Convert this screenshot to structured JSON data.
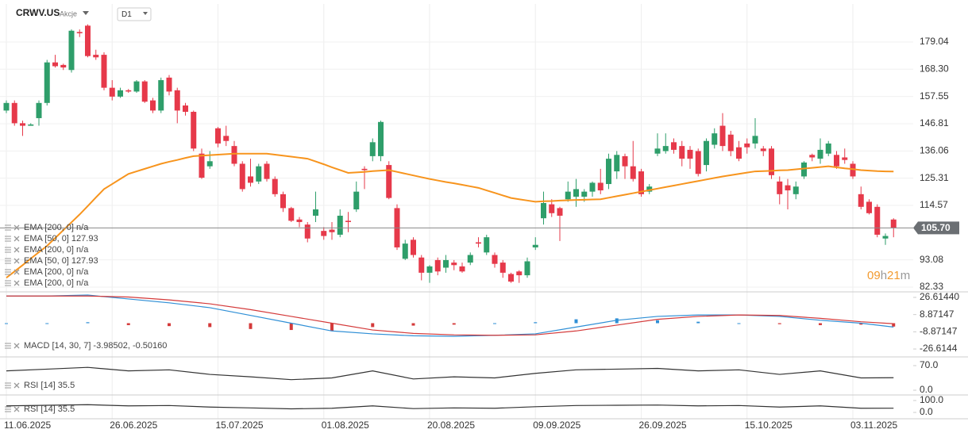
{
  "header": {
    "symbol": "CRWV.US",
    "kind": "Akcje",
    "interval": "D1"
  },
  "chart_data": [
    {
      "type": "candlestick",
      "categories": [
        "11.06.2025",
        null,
        null,
        null,
        null,
        null,
        null,
        null,
        null,
        null,
        null,
        null,
        null,
        "26.06.2025",
        null,
        null,
        null,
        null,
        null,
        null,
        null,
        null,
        null,
        null,
        null,
        null,
        "15.07.2025",
        null,
        null,
        null,
        null,
        null,
        null,
        null,
        null,
        null,
        null,
        null,
        null,
        "01.08.2025",
        null,
        null,
        null,
        null,
        null,
        null,
        null,
        null,
        null,
        null,
        null,
        null,
        "20.08.2025",
        null,
        null,
        null,
        null,
        null,
        null,
        null,
        null,
        null,
        null,
        null,
        null,
        "09.09.2025",
        null,
        null,
        null,
        null,
        null,
        null,
        null,
        null,
        null,
        null,
        null,
        null,
        "26.09.2025",
        null,
        null,
        null,
        null,
        null,
        null,
        null,
        null,
        null,
        null,
        null,
        null,
        "15.10.2025",
        null,
        null,
        null,
        null,
        null,
        null,
        null,
        null,
        null,
        null,
        null,
        null,
        "03.11.2025",
        null,
        null,
        null,
        null,
        null
      ],
      "open": [
        152,
        155,
        147,
        146,
        149,
        155,
        171,
        170,
        168,
        183,
        185.5,
        174,
        174,
        161,
        157.5,
        160,
        159.5,
        163.5,
        156,
        152,
        165,
        160,
        154,
        151.5,
        135,
        130,
        145,
        142,
        138,
        131,
        126,
        124,
        131,
        125,
        119,
        113.5,
        109,
        107,
        110.5,
        104.5,
        105,
        103,
        108.5,
        113,
        129,
        134,
        134,
        130.5,
        113.5,
        93.5,
        101,
        94,
        88,
        93,
        90,
        92,
        90.5,
        92,
        100,
        96,
        95,
        92,
        87.5,
        88.5,
        87,
        98,
        109.5,
        115,
        113.5,
        117,
        118,
        118,
        120,
        123.5,
        123,
        128,
        134,
        130,
        128,
        120,
        135,
        136,
        139.5,
        138,
        136.5,
        136,
        130.5,
        138.5,
        146,
        142.5,
        137.5,
        139,
        139,
        137,
        137,
        124,
        122.5,
        119,
        126,
        134.5,
        133,
        135,
        134.5,
        133.5,
        131,
        119,
        116,
        114,
        101.5,
        109
      ],
      "high": [
        156,
        156,
        148,
        147,
        156,
        172,
        174,
        170.5,
        184,
        184,
        186,
        176,
        175,
        164,
        161,
        160.5,
        164,
        164,
        157,
        165,
        166,
        161,
        155,
        152,
        137,
        136,
        145.5,
        146,
        140,
        132,
        133,
        131,
        132,
        126,
        120,
        114,
        110,
        108,
        120,
        106,
        108,
        113,
        112,
        124,
        130,
        141,
        148,
        132,
        115,
        101,
        102,
        95,
        91,
        94,
        95,
        93,
        92,
        96,
        102,
        103,
        96,
        93,
        88,
        89,
        94,
        102,
        120,
        117,
        114,
        124,
        125,
        121,
        124,
        129,
        135,
        136,
        135,
        140,
        129,
        123,
        143,
        143,
        141,
        140,
        138,
        137,
        141,
        145,
        151,
        144,
        140,
        141,
        149,
        138,
        138,
        126,
        125,
        124,
        132,
        135,
        141,
        140,
        136,
        137,
        132,
        122,
        117,
        115,
        103.5,
        109.5
      ],
      "low": [
        151,
        146,
        142,
        146,
        146,
        154,
        169,
        168,
        167,
        181,
        173,
        172,
        160,
        156,
        157,
        159,
        159,
        155,
        151,
        151,
        158,
        147,
        150,
        136,
        125,
        129,
        137.5,
        138,
        130,
        120,
        122,
        123,
        124,
        118,
        112,
        108,
        106,
        100,
        108,
        101,
        101,
        102,
        104,
        112,
        121,
        132,
        132,
        117,
        97,
        93,
        94,
        85,
        84,
        87,
        88,
        89,
        88,
        91,
        98,
        95,
        90,
        86,
        84,
        84,
        86,
        97,
        107,
        110,
        100.5,
        116,
        114,
        116,
        118,
        119,
        121,
        125,
        125,
        124,
        118,
        119,
        134,
        135,
        135,
        130,
        129,
        126,
        128,
        137,
        136,
        134,
        132,
        135,
        137,
        134,
        125,
        115,
        113,
        117,
        125,
        132,
        131,
        134,
        129,
        131,
        125,
        113,
        111,
        102,
        99,
        102
      ],
      "close": [
        155,
        147,
        146,
        146.5,
        155,
        171,
        169.5,
        169,
        183.5,
        182.5,
        173.5,
        173,
        161,
        157.5,
        160,
        159.5,
        163.5,
        155.5,
        152,
        164,
        159.5,
        152,
        151.5,
        137,
        125.5,
        132,
        139,
        140,
        131,
        121,
        123.5,
        130,
        125,
        119,
        113.5,
        108.5,
        108,
        101.5,
        113,
        102.5,
        104,
        110.5,
        108,
        120,
        128.5,
        139.5,
        147.5,
        117.5,
        98,
        99.5,
        95,
        88,
        90.5,
        88.5,
        93,
        91,
        88.5,
        95,
        99.5,
        102,
        91.5,
        88,
        84.5,
        87,
        92.5,
        99,
        115.5,
        111.5,
        110.5,
        120,
        121,
        120,
        123.5,
        120.5,
        133,
        134.5,
        130,
        125,
        119,
        122,
        137,
        138,
        136.5,
        133,
        133,
        127,
        140,
        143,
        138,
        136,
        133,
        137.5,
        142,
        136,
        126.5,
        119,
        120.5,
        122,
        131.5,
        133.5,
        136.5,
        139,
        130,
        132.5,
        126,
        114,
        111.5,
        103,
        102.5,
        105.7
      ],
      "up_color": "#2e9e6a",
      "down_color": "#e6394a",
      "series": [
        {
          "color": "#f7941d",
          "values": [
            86,
            88.5,
            91,
            93.6,
            96.1,
            98.6,
            101.7,
            104.8,
            107.9,
            111,
            114.3,
            117.7,
            121,
            123,
            125,
            127,
            128,
            129,
            130,
            131,
            131.8,
            132.5,
            133.3,
            134,
            134.2,
            134.4,
            134.6,
            134.8,
            135,
            135,
            135,
            135,
            135,
            134.6,
            134.2,
            133.8,
            133.4,
            133,
            131.9,
            130.8,
            129.6,
            128.5,
            127.4,
            127.6,
            127.8,
            128.1,
            128.3,
            128.5,
            127.8,
            127.1,
            126.4,
            125.7,
            125,
            124.4,
            123.8,
            123.3,
            122.7,
            122.1,
            121.5,
            120.5,
            119.5,
            118.5,
            117.5,
            117,
            116.5,
            116,
            116.2,
            116.3,
            116.5,
            116.6,
            116.7,
            116.8,
            116.9,
            117,
            117.6,
            118.2,
            118.8,
            119.4,
            120,
            120.6,
            121.2,
            121.8,
            122.4,
            123,
            123.6,
            124.2,
            124.8,
            125.4,
            126,
            126.5,
            127,
            127.5,
            128,
            128.1,
            128.2,
            128.4,
            128.5,
            128.8,
            129.1,
            129.4,
            129.7,
            130,
            129.6,
            129.2,
            128.9,
            128.5,
            128.3,
            128.1,
            128,
            127.93
          ]
        }
      ],
      "legend": [
        "EMA [200, 0] n/a",
        "EMA [50, 0] 127.93",
        "EMA [200, 0] n/a",
        "EMA [50, 0] 127.93",
        "EMA [200, 0] n/a",
        "EMA [200, 0] n/a"
      ],
      "last_price": {
        "value": 105.7,
        "label": "105.70"
      },
      "countdown": [
        "09",
        "h",
        "21",
        "m"
      ],
      "ylim": [
        80.45,
        194.06
      ],
      "yticks": [
        179.04,
        {
          "value": 168.3,
          "label": "168.30"
        },
        157.55,
        146.81,
        136.06,
        125.31,
        114.57,
        93.08,
        82.33
      ],
      "grid": true
    },
    {
      "type": "macd",
      "legend": "MACD [14, 30, 7] -3.98502, -0.50160",
      "x": [
        0,
        5,
        10,
        15,
        20,
        25,
        30,
        35,
        40,
        45,
        50,
        55,
        60,
        65,
        70,
        75,
        80,
        85,
        90,
        95,
        100,
        105,
        109
      ],
      "series": [
        {
          "color": "#2f8fd6",
          "values": [
            28,
            28,
            29,
            25,
            21,
            16,
            8,
            0,
            -8,
            -11,
            -13,
            -13.5,
            -12.5,
            -11,
            -4,
            3,
            7,
            8.5,
            8.5,
            7,
            3,
            0,
            -3.98502
          ]
        },
        {
          "color": "#d43a3a",
          "values": [
            28,
            28,
            28,
            27,
            24,
            20,
            14,
            7,
            0,
            -7,
            -10.5,
            -12,
            -12.5,
            -12,
            -8,
            -2,
            4,
            7,
            8.5,
            8,
            5,
            1.5,
            -0.5016
          ]
        }
      ],
      "histogram": {
        "up_color": "#2f8fd6",
        "down_color": "#d43a3a",
        "values": [
          0,
          0,
          1,
          -2,
          -3,
          -4,
          -6,
          -7,
          -8,
          -4,
          -2.5,
          -1.5,
          0,
          1,
          4,
          5,
          3,
          1.5,
          0,
          -1,
          -2,
          -1.5,
          -3.48
        ]
      },
      "ylim": [
        -32.3,
        32.3
      ],
      "yticks": [
        {
          "value": 26.6144,
          "label": "26.61440"
        },
        8.87147,
        -8.87147,
        -26.6144
      ]
    },
    {
      "type": "line",
      "legend": "RSI [14] 35.5",
      "x": [
        0,
        5,
        10,
        15,
        20,
        25,
        30,
        35,
        40,
        45,
        50,
        55,
        60,
        65,
        70,
        75,
        80,
        85,
        90,
        95,
        100,
        105,
        109
      ],
      "series": [
        {
          "color": "#333333",
          "values": [
            55,
            60,
            65,
            55,
            58,
            45,
            38,
            30,
            35,
            55,
            32,
            38,
            35,
            48,
            58,
            60,
            62,
            55,
            58,
            45,
            55,
            35,
            35.5
          ]
        }
      ],
      "ylim": [
        -11.3,
        94.8
      ],
      "yticks": [
        {
          "value": 70,
          "label": "70.0"
        },
        {
          "value": 0,
          "label": "0.0"
        }
      ]
    },
    {
      "type": "line",
      "legend": "RSI [14] 35.5",
      "x": [
        0,
        5,
        10,
        15,
        20,
        25,
        30,
        35,
        40,
        45,
        50,
        55,
        60,
        65,
        70,
        75,
        80,
        85,
        90,
        95,
        100,
        105,
        109
      ],
      "series": [
        {
          "color": "#333333",
          "values": [
            55,
            60,
            65,
            55,
            58,
            45,
            38,
            30,
            35,
            55,
            32,
            38,
            35,
            48,
            58,
            60,
            62,
            55,
            58,
            45,
            55,
            35,
            35.5
          ]
        }
      ],
      "ylim": [
        -46.7,
        146.7
      ],
      "yticks": [
        {
          "value": 100,
          "label": "100.0"
        },
        {
          "value": 0,
          "label": "0.0"
        }
      ]
    }
  ]
}
